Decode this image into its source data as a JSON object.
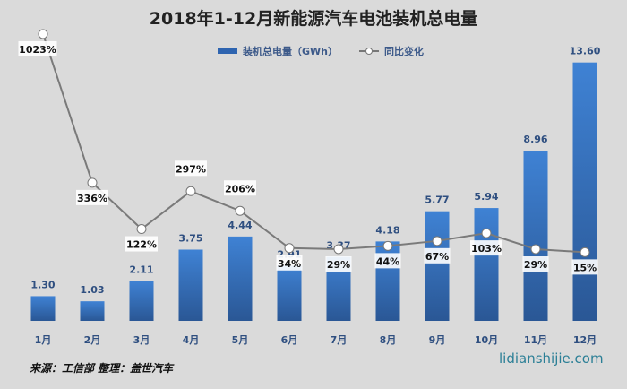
{
  "chart_data": {
    "type": "bar+line",
    "title": "2018年1-12月新能源汽车电池装机总电量",
    "categories": [
      "1月",
      "2月",
      "3月",
      "4月",
      "5月",
      "6月",
      "7月",
      "8月",
      "9月",
      "10月",
      "11月",
      "12月"
    ],
    "series": [
      {
        "name": "装机总电量（GWh）",
        "type": "bar",
        "values": [
          1.3,
          1.03,
          2.11,
          3.75,
          4.44,
          2.91,
          3.37,
          4.18,
          5.77,
          5.94,
          8.96,
          13.6
        ],
        "labels": [
          "1.30",
          "1.03",
          "2.11",
          "3.75",
          "4.44",
          "2.91",
          "3.37",
          "4.18",
          "5.77",
          "5.94",
          "8.96",
          "13.60"
        ],
        "color": "#2e64b0"
      },
      {
        "name": "同比变化",
        "type": "line",
        "values": [
          1023,
          336,
          122,
          297,
          206,
          34,
          29,
          44,
          67,
          103,
          29,
          15
        ],
        "labels": [
          "1023%",
          "336%",
          "122%",
          "297%",
          "206%",
          "34%",
          "29%",
          "44%",
          "67%",
          "103%",
          "29%",
          "15%"
        ],
        "color": "#7a7a7a"
      }
    ],
    "legend": "top-center",
    "grid": false
  },
  "footer": {
    "source": "来源：工信部 整理：盖世汽车",
    "site": "lidianshijie.com"
  },
  "colors": {
    "background": "#dadada",
    "bar": "#2e64b0",
    "line": "#7a7a7a"
  }
}
